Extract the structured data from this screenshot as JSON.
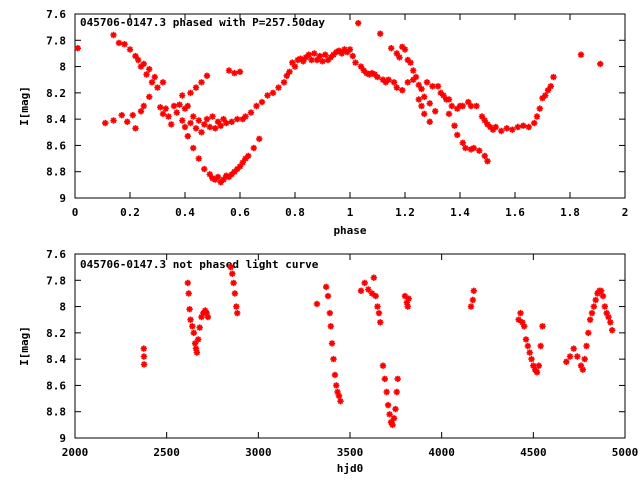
{
  "colors": {
    "points": "#ff0000",
    "axes": "#000000",
    "background": "#ffffff"
  },
  "chart_data": [
    {
      "type": "scatter",
      "title": "045706-0147.3 phased with P=257.50day",
      "xlabel": "phase",
      "ylabel": "I[mag]",
      "xlim": [
        0,
        2
      ],
      "ylim": [
        7.6,
        9
      ],
      "y_inverted": true,
      "grid": false,
      "legend": "none",
      "x_ticks": [
        "0",
        "0.2",
        "0.4",
        "0.6",
        "0.8",
        "1",
        "1.2",
        "1.4",
        "1.6",
        "1.8",
        "2"
      ],
      "y_ticks": [
        "7.6",
        "7.8",
        "8",
        "8.2",
        "8.4",
        "8.6",
        "8.8",
        "9"
      ],
      "points": [
        [
          0.01,
          7.86
        ],
        [
          0.11,
          8.43
        ],
        [
          0.14,
          7.76
        ],
        [
          0.14,
          8.41
        ],
        [
          0.16,
          7.82
        ],
        [
          0.17,
          8.37
        ],
        [
          0.18,
          7.83
        ],
        [
          0.19,
          8.42
        ],
        [
          0.2,
          7.87
        ],
        [
          0.21,
          8.37
        ],
        [
          0.22,
          7.92
        ],
        [
          0.22,
          8.47
        ],
        [
          0.23,
          7.95
        ],
        [
          0.24,
          8.34
        ],
        [
          0.24,
          8.0
        ],
        [
          0.25,
          7.98
        ],
        [
          0.25,
          8.3
        ],
        [
          0.26,
          8.06
        ],
        [
          0.27,
          8.02
        ],
        [
          0.27,
          8.23
        ],
        [
          0.28,
          8.12
        ],
        [
          0.29,
          8.08
        ],
        [
          0.3,
          8.16
        ],
        [
          0.31,
          8.31
        ],
        [
          0.32,
          8.36
        ],
        [
          0.32,
          8.12
        ],
        [
          0.33,
          8.32
        ],
        [
          0.34,
          8.38
        ],
        [
          0.35,
          8.44
        ],
        [
          0.36,
          8.3
        ],
        [
          0.37,
          8.35
        ],
        [
          0.38,
          8.29
        ],
        [
          0.39,
          8.41
        ],
        [
          0.39,
          8.22
        ],
        [
          0.4,
          8.32
        ],
        [
          0.4,
          8.46
        ],
        [
          0.41,
          8.53
        ],
        [
          0.41,
          8.3
        ],
        [
          0.42,
          8.43
        ],
        [
          0.42,
          8.2
        ],
        [
          0.43,
          8.62
        ],
        [
          0.43,
          8.38
        ],
        [
          0.44,
          8.47
        ],
        [
          0.44,
          8.16
        ],
        [
          0.45,
          8.7
        ],
        [
          0.45,
          8.41
        ],
        [
          0.46,
          8.5
        ],
        [
          0.46,
          8.12
        ],
        [
          0.47,
          8.78
        ],
        [
          0.47,
          8.44
        ],
        [
          0.48,
          8.4
        ],
        [
          0.48,
          8.07
        ],
        [
          0.49,
          8.82
        ],
        [
          0.49,
          8.46
        ],
        [
          0.5,
          8.85
        ],
        [
          0.5,
          8.38
        ],
        [
          0.51,
          8.86
        ],
        [
          0.51,
          8.47
        ],
        [
          0.52,
          8.84
        ],
        [
          0.52,
          8.42
        ],
        [
          0.53,
          8.88
        ],
        [
          0.53,
          8.45
        ],
        [
          0.54,
          8.86
        ],
        [
          0.54,
          8.4
        ],
        [
          0.55,
          8.83
        ],
        [
          0.55,
          8.43
        ],
        [
          0.56,
          8.84
        ],
        [
          0.56,
          8.03
        ],
        [
          0.57,
          8.82
        ],
        [
          0.57,
          8.42
        ],
        [
          0.58,
          8.8
        ],
        [
          0.58,
          8.05
        ],
        [
          0.59,
          8.78
        ],
        [
          0.59,
          8.4
        ],
        [
          0.6,
          8.76
        ],
        [
          0.6,
          8.04
        ],
        [
          0.61,
          8.73
        ],
        [
          0.61,
          8.4
        ],
        [
          0.62,
          8.7
        ],
        [
          0.62,
          8.38
        ],
        [
          0.63,
          8.68
        ],
        [
          0.64,
          8.35
        ],
        [
          0.65,
          8.62
        ],
        [
          0.66,
          8.3
        ],
        [
          0.67,
          8.55
        ],
        [
          0.68,
          8.27
        ],
        [
          0.7,
          8.22
        ],
        [
          0.72,
          8.2
        ],
        [
          0.74,
          8.16
        ],
        [
          0.76,
          8.12
        ],
        [
          0.77,
          8.07
        ],
        [
          0.78,
          8.04
        ],
        [
          0.79,
          7.97
        ],
        [
          0.8,
          8.0
        ],
        [
          0.81,
          7.95
        ],
        [
          0.82,
          7.94
        ],
        [
          0.83,
          7.96
        ],
        [
          0.84,
          7.93
        ],
        [
          0.85,
          7.91
        ],
        [
          0.86,
          7.95
        ],
        [
          0.87,
          7.9
        ],
        [
          0.88,
          7.95
        ],
        [
          0.89,
          7.92
        ],
        [
          0.9,
          7.96
        ],
        [
          0.91,
          7.91
        ],
        [
          0.92,
          7.95
        ],
        [
          0.93,
          7.93
        ],
        [
          0.94,
          7.91
        ],
        [
          0.95,
          7.89
        ],
        [
          0.96,
          7.88
        ],
        [
          0.97,
          7.9
        ],
        [
          0.98,
          7.87
        ],
        [
          0.99,
          7.89
        ],
        [
          1.0,
          7.87
        ],
        [
          1.01,
          7.92
        ],
        [
          1.02,
          7.97
        ],
        [
          1.03,
          7.67
        ],
        [
          1.04,
          8.0
        ],
        [
          1.05,
          8.03
        ],
        [
          1.06,
          8.05
        ],
        [
          1.07,
          8.06
        ],
        [
          1.08,
          8.05
        ],
        [
          1.09,
          8.06
        ],
        [
          1.1,
          8.08
        ],
        [
          1.11,
          7.75
        ],
        [
          1.12,
          8.1
        ],
        [
          1.13,
          8.12
        ],
        [
          1.14,
          8.1
        ],
        [
          1.15,
          7.86
        ],
        [
          1.16,
          8.12
        ],
        [
          1.17,
          7.9
        ],
        [
          1.17,
          8.16
        ],
        [
          1.18,
          7.93
        ],
        [
          1.19,
          7.85
        ],
        [
          1.19,
          8.18
        ],
        [
          1.2,
          7.87
        ],
        [
          1.21,
          7.95
        ],
        [
          1.21,
          8.12
        ],
        [
          1.22,
          7.97
        ],
        [
          1.23,
          8.03
        ],
        [
          1.23,
          8.1
        ],
        [
          1.24,
          8.08
        ],
        [
          1.25,
          8.14
        ],
        [
          1.25,
          8.25
        ],
        [
          1.26,
          8.17
        ],
        [
          1.26,
          8.3
        ],
        [
          1.27,
          8.23
        ],
        [
          1.27,
          8.36
        ],
        [
          1.28,
          8.12
        ],
        [
          1.29,
          8.28
        ],
        [
          1.29,
          8.42
        ],
        [
          1.3,
          8.15
        ],
        [
          1.31,
          8.34
        ],
        [
          1.32,
          8.15
        ],
        [
          1.33,
          8.2
        ],
        [
          1.34,
          8.22
        ],
        [
          1.35,
          8.25
        ],
        [
          1.36,
          8.36
        ],
        [
          1.36,
          8.25
        ],
        [
          1.37,
          8.3
        ],
        [
          1.38,
          8.45
        ],
        [
          1.39,
          8.32
        ],
        [
          1.39,
          8.52
        ],
        [
          1.4,
          8.3
        ],
        [
          1.41,
          8.58
        ],
        [
          1.41,
          8.3
        ],
        [
          1.42,
          8.62
        ],
        [
          1.43,
          8.27
        ],
        [
          1.44,
          8.63
        ],
        [
          1.44,
          8.3
        ],
        [
          1.45,
          8.62
        ],
        [
          1.46,
          8.3
        ],
        [
          1.47,
          8.64
        ],
        [
          1.48,
          8.38
        ],
        [
          1.49,
          8.68
        ],
        [
          1.49,
          8.41
        ],
        [
          1.5,
          8.72
        ],
        [
          1.5,
          8.44
        ],
        [
          1.51,
          8.46
        ],
        [
          1.52,
          8.48
        ],
        [
          1.53,
          8.46
        ],
        [
          1.55,
          8.49
        ],
        [
          1.57,
          8.47
        ],
        [
          1.59,
          8.48
        ],
        [
          1.61,
          8.46
        ],
        [
          1.63,
          8.45
        ],
        [
          1.65,
          8.46
        ],
        [
          1.67,
          8.43
        ],
        [
          1.68,
          8.38
        ],
        [
          1.69,
          8.32
        ],
        [
          1.7,
          8.24
        ],
        [
          1.71,
          8.22
        ],
        [
          1.72,
          8.18
        ],
        [
          1.73,
          8.15
        ],
        [
          1.74,
          8.08
        ],
        [
          1.84,
          7.91
        ],
        [
          1.91,
          7.98
        ]
      ]
    },
    {
      "type": "scatter",
      "title": "045706-0147.3 not phased light curve",
      "xlabel": "hjd0",
      "ylabel": "I[mag]",
      "xlim": [
        2000,
        5000
      ],
      "ylim": [
        7.6,
        9
      ],
      "y_inverted": true,
      "grid": false,
      "legend": "none",
      "x_ticks": [
        "2000",
        "2500",
        "3000",
        "3500",
        "4000",
        "4500",
        "5000"
      ],
      "y_ticks": [
        "7.6",
        "7.8",
        "8",
        "8.2",
        "8.4",
        "8.6",
        "8.8",
        "9"
      ],
      "points": [
        [
          2375,
          8.32
        ],
        [
          2376,
          8.38
        ],
        [
          2377,
          8.44
        ],
        [
          2615,
          7.82
        ],
        [
          2620,
          7.9
        ],
        [
          2625,
          8.02
        ],
        [
          2630,
          8.1
        ],
        [
          2640,
          8.15
        ],
        [
          2648,
          8.2
        ],
        [
          2655,
          8.28
        ],
        [
          2660,
          8.32
        ],
        [
          2665,
          8.35
        ],
        [
          2672,
          8.25
        ],
        [
          2680,
          8.16
        ],
        [
          2690,
          8.08
        ],
        [
          2700,
          8.05
        ],
        [
          2710,
          8.03
        ],
        [
          2718,
          8.05
        ],
        [
          2725,
          8.08
        ],
        [
          2850,
          7.7
        ],
        [
          2858,
          7.75
        ],
        [
          2865,
          7.82
        ],
        [
          2872,
          7.9
        ],
        [
          2880,
          8.0
        ],
        [
          2885,
          8.05
        ],
        [
          3320,
          7.98
        ],
        [
          3370,
          7.85
        ],
        [
          3380,
          7.92
        ],
        [
          3390,
          8.05
        ],
        [
          3395,
          8.15
        ],
        [
          3402,
          8.28
        ],
        [
          3410,
          8.4
        ],
        [
          3418,
          8.52
        ],
        [
          3425,
          8.6
        ],
        [
          3432,
          8.65
        ],
        [
          3440,
          8.68
        ],
        [
          3448,
          8.72
        ],
        [
          3560,
          7.88
        ],
        [
          3580,
          7.82
        ],
        [
          3600,
          7.87
        ],
        [
          3620,
          7.9
        ],
        [
          3630,
          7.78
        ],
        [
          3640,
          7.92
        ],
        [
          3650,
          8.0
        ],
        [
          3658,
          8.05
        ],
        [
          3665,
          8.12
        ],
        [
          3680,
          8.45
        ],
        [
          3690,
          8.55
        ],
        [
          3700,
          8.65
        ],
        [
          3708,
          8.75
        ],
        [
          3716,
          8.82
        ],
        [
          3724,
          8.88
        ],
        [
          3732,
          8.9
        ],
        [
          3740,
          8.85
        ],
        [
          3748,
          8.78
        ],
        [
          3755,
          8.65
        ],
        [
          3760,
          8.55
        ],
        [
          3800,
          7.92
        ],
        [
          3810,
          7.97
        ],
        [
          3815,
          8.0
        ],
        [
          3820,
          7.94
        ],
        [
          4160,
          8.0
        ],
        [
          4170,
          7.95
        ],
        [
          4175,
          7.88
        ],
        [
          4420,
          8.1
        ],
        [
          4430,
          8.05
        ],
        [
          4440,
          8.12
        ],
        [
          4450,
          8.15
        ],
        [
          4460,
          8.25
        ],
        [
          4470,
          8.3
        ],
        [
          4480,
          8.35
        ],
        [
          4490,
          8.4
        ],
        [
          4500,
          8.45
        ],
        [
          4510,
          8.48
        ],
        [
          4520,
          8.5
        ],
        [
          4530,
          8.45
        ],
        [
          4540,
          8.3
        ],
        [
          4550,
          8.15
        ],
        [
          4680,
          8.42
        ],
        [
          4700,
          8.38
        ],
        [
          4720,
          8.32
        ],
        [
          4740,
          8.38
        ],
        [
          4760,
          8.45
        ],
        [
          4770,
          8.48
        ],
        [
          4780,
          8.4
        ],
        [
          4790,
          8.3
        ],
        [
          4800,
          8.2
        ],
        [
          4810,
          8.1
        ],
        [
          4820,
          8.05
        ],
        [
          4830,
          8.0
        ],
        [
          4840,
          7.95
        ],
        [
          4850,
          7.9
        ],
        [
          4860,
          7.88
        ],
        [
          4870,
          7.88
        ],
        [
          4880,
          7.92
        ],
        [
          4890,
          8.0
        ],
        [
          4900,
          8.05
        ],
        [
          4910,
          8.08
        ],
        [
          4920,
          8.12
        ],
        [
          4930,
          8.18
        ]
      ]
    }
  ]
}
